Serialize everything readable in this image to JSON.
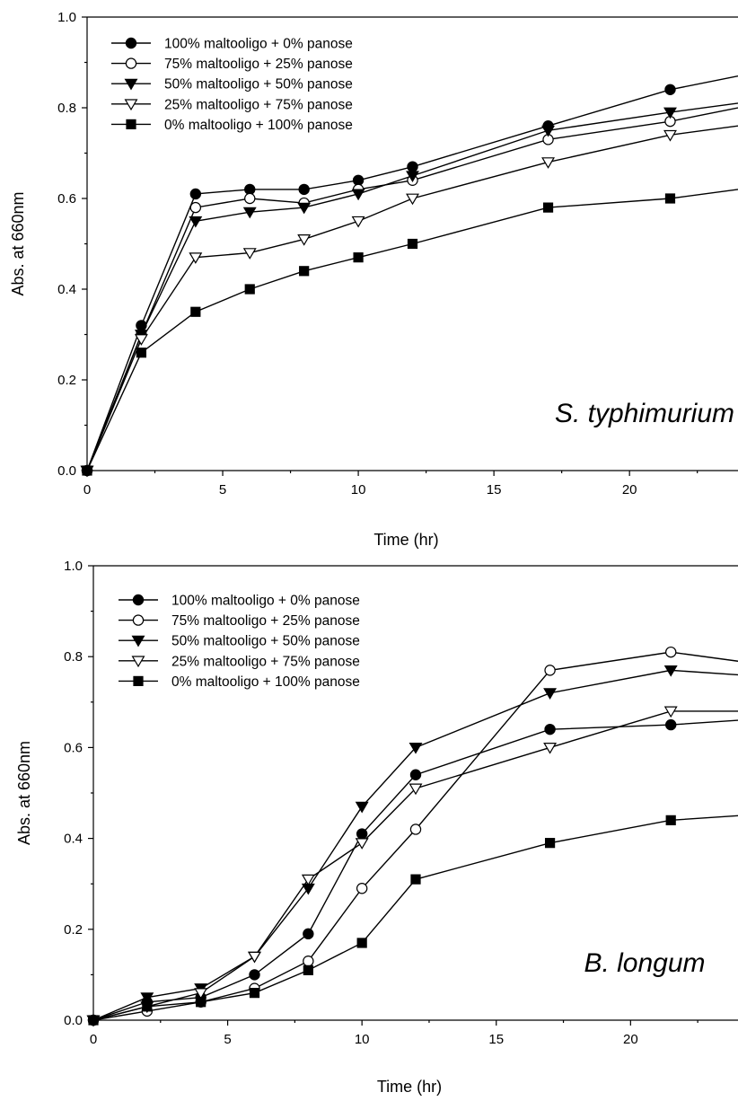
{
  "chart_data": [
    {
      "type": "line",
      "xlabel": "Time (hr)",
      "ylabel": "Abs. at 660nm",
      "xlim": [
        0,
        24
      ],
      "ylim": [
        0,
        1.0
      ],
      "xticks": [
        "0",
        "5",
        "10",
        "15",
        "20"
      ],
      "yticks": [
        "0.0",
        "0.2",
        "0.4",
        "0.6",
        "0.8",
        "1.0"
      ],
      "annotation": "S. typhimurium",
      "legend_position": "top-left",
      "x": [
        0,
        2,
        4,
        6,
        8,
        10,
        12,
        17,
        21.5,
        24
      ],
      "series": [
        {
          "name": "100% maltooligo + 0% panose",
          "marker": "filled-circle",
          "values": [
            0,
            0.32,
            0.61,
            0.62,
            0.62,
            0.64,
            0.67,
            0.76,
            0.84,
            0.87
          ]
        },
        {
          "name": "75% maltooligo + 25% panose",
          "marker": "open-circle",
          "values": [
            0,
            0.3,
            0.58,
            0.6,
            0.59,
            0.62,
            0.64,
            0.73,
            0.77,
            0.8
          ]
        },
        {
          "name": "50% maltooligo + 50% panose",
          "marker": "filled-triangle-down",
          "values": [
            0,
            0.3,
            0.55,
            0.57,
            0.58,
            0.61,
            0.65,
            0.75,
            0.79,
            0.81
          ]
        },
        {
          "name": "25% maltooligo + 75% panose",
          "marker": "open-triangle-down",
          "values": [
            0,
            0.29,
            0.47,
            0.48,
            0.51,
            0.55,
            0.6,
            0.68,
            0.74,
            0.76
          ]
        },
        {
          "name": "0% maltooligo + 100% panose",
          "marker": "filled-square",
          "values": [
            0,
            0.26,
            0.35,
            0.4,
            0.44,
            0.47,
            0.5,
            0.58,
            0.6,
            0.62
          ]
        }
      ]
    },
    {
      "type": "line",
      "xlabel": "Time (hr)",
      "ylabel": "Abs. at 660nm",
      "xlim": [
        0,
        24
      ],
      "ylim": [
        0,
        1.0
      ],
      "xticks": [
        "0",
        "5",
        "10",
        "15",
        "20"
      ],
      "yticks": [
        "0.0",
        "0.2",
        "0.4",
        "0.6",
        "0.8",
        "1.0"
      ],
      "annotation": "B. longum",
      "legend_position": "top-left",
      "x": [
        0,
        2,
        4,
        6,
        8,
        10,
        12,
        17,
        21.5,
        24
      ],
      "series": [
        {
          "name": "100% maltooligo + 0% panose",
          "marker": "filled-circle",
          "values": [
            0,
            0.04,
            0.05,
            0.1,
            0.19,
            0.41,
            0.54,
            0.64,
            0.65,
            0.66
          ]
        },
        {
          "name": "75% maltooligo + 25% panose",
          "marker": "open-circle",
          "values": [
            0,
            0.02,
            0.04,
            0.07,
            0.13,
            0.29,
            0.42,
            0.77,
            0.81,
            0.79
          ]
        },
        {
          "name": "50% maltooligo + 50% panose",
          "marker": "filled-triangle-down",
          "values": [
            0,
            0.05,
            0.07,
            0.14,
            0.29,
            0.47,
            0.6,
            0.72,
            0.77,
            0.76
          ]
        },
        {
          "name": "25% maltooligo + 75% panose",
          "marker": "open-triangle-down",
          "values": [
            0,
            0.03,
            0.06,
            0.14,
            0.31,
            0.39,
            0.51,
            0.6,
            0.68,
            0.68
          ]
        },
        {
          "name": "0% maltooligo + 100% panose",
          "marker": "filled-square",
          "values": [
            0,
            0.03,
            0.04,
            0.06,
            0.11,
            0.17,
            0.31,
            0.39,
            0.44,
            0.45
          ]
        }
      ]
    }
  ]
}
